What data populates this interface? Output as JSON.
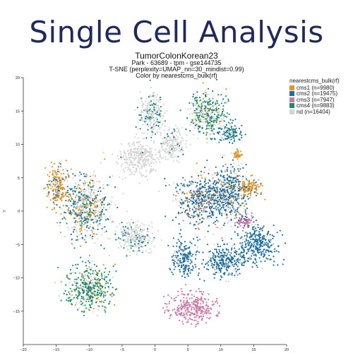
{
  "banner": {
    "title": "Single Cell Analysis"
  },
  "header": {
    "dataset": "TumorColonKorean23",
    "subtitle": "Park - 63689 - tpm - gse144735",
    "method": "T-SNE (perplexity=UMAP_nn=30_mindist=0.99)",
    "color_by": "Color by nearestcms_bulk(rf)"
  },
  "legend": {
    "title": "nearestcms_bulk(rf)",
    "items": [
      {
        "label": "cms1 (n=9980)",
        "color": "#e0962a"
      },
      {
        "label": "cms2 (n=19475)",
        "color": "#1f6e9c"
      },
      {
        "label": "cms3 (n=7947)",
        "color": "#c97aa6"
      },
      {
        "label": "cms4 (n=9883)",
        "color": "#1a8f68"
      },
      {
        "label": "nd (n=16404)",
        "color": "#d4d4d4"
      }
    ]
  },
  "chart_data": {
    "type": "scatter",
    "title": "TumorColonKorean23",
    "xlim": [
      -20,
      20
    ],
    "ylim": [
      -20,
      20
    ],
    "xticks": [
      -20,
      -15,
      -10,
      -5,
      0,
      5,
      10,
      15,
      20
    ],
    "yticks": [
      20,
      15,
      10,
      5,
      0,
      -5,
      -10,
      -15
    ],
    "ylabel": "Y",
    "grid": false,
    "legend_position": "top-right",
    "series": [
      {
        "name": "cms1 (n=9980)",
        "color": "#e0962a",
        "n": 9980
      },
      {
        "name": "cms2 (n=19475)",
        "color": "#1f6e9c",
        "n": 19475
      },
      {
        "name": "cms3 (n=7947)",
        "color": "#c97aa6",
        "n": 7947
      },
      {
        "name": "cms4 (n=9883)",
        "color": "#1a8f68",
        "n": 9883
      },
      {
        "name": "nd (n=16404)",
        "color": "#d4d4d4",
        "n": 16404
      }
    ],
    "clusters": [
      {
        "center": [
          -10.5,
          0.5
        ],
        "spread": [
          3.2,
          4.2
        ],
        "mix": {
          "nd": 0.45,
          "cms2": 0.25,
          "cms1": 0.18,
          "cms4": 0.12
        }
      },
      {
        "center": [
          -14.8,
          3.5
        ],
        "spread": [
          1.4,
          3.0
        ],
        "mix": {
          "cms1": 0.7,
          "cms2": 0.2,
          "nd": 0.1
        }
      },
      {
        "center": [
          -10.0,
          -11.5
        ],
        "spread": [
          3.2,
          3.0
        ],
        "mix": {
          "cms4": 0.55,
          "nd": 0.2,
          "cms1": 0.15,
          "cms2": 0.1
        }
      },
      {
        "center": [
          -3.0,
          -4.0
        ],
        "spread": [
          2.6,
          2.0
        ],
        "mix": {
          "nd": 0.8,
          "cms4": 0.1,
          "cms2": 0.1
        }
      },
      {
        "center": [
          -2.5,
          8.0
        ],
        "spread": [
          2.8,
          2.2
        ],
        "mix": {
          "nd": 0.95,
          "cms2": 0.05
        }
      },
      {
        "center": [
          2.5,
          10.0
        ],
        "spread": [
          1.8,
          2.0
        ],
        "mix": {
          "nd": 0.9,
          "cms2": 0.05,
          "cms4": 0.05
        }
      },
      {
        "center": [
          8.0,
          14.5
        ],
        "spread": [
          2.6,
          3.0
        ],
        "mix": {
          "cms4": 0.45,
          "nd": 0.3,
          "cms2": 0.15,
          "cms1": 0.1
        }
      },
      {
        "center": [
          -0.5,
          14.5
        ],
        "spread": [
          1.8,
          2.8
        ],
        "mix": {
          "nd": 0.7,
          "cms4": 0.15,
          "cms2": 0.15
        }
      },
      {
        "center": [
          11.5,
          11.8
        ],
        "spread": [
          1.6,
          1.4
        ],
        "mix": {
          "cms2": 0.55,
          "cms4": 0.25,
          "nd": 0.2
        }
      },
      {
        "center": [
          7.5,
          1.5
        ],
        "spread": [
          4.2,
          3.3
        ],
        "mix": {
          "cms2": 0.55,
          "nd": 0.2,
          "cms1": 0.15,
          "cms3": 0.1
        }
      },
      {
        "center": [
          11.5,
          3.0
        ],
        "spread": [
          2.6,
          3.5
        ],
        "mix": {
          "cms2": 0.6,
          "nd": 0.25,
          "cms1": 0.1,
          "cms4": 0.05
        }
      },
      {
        "center": [
          15.5,
          -5.0
        ],
        "spread": [
          2.6,
          2.6
        ],
        "mix": {
          "cms2": 0.95,
          "nd": 0.05
        }
      },
      {
        "center": [
          10.5,
          -7.5
        ],
        "spread": [
          2.8,
          2.0
        ],
        "mix": {
          "cms2": 0.9,
          "nd": 0.1
        }
      },
      {
        "center": [
          4.5,
          -7.0
        ],
        "spread": [
          1.6,
          2.4
        ],
        "mix": {
          "cms2": 0.85,
          "nd": 0.15
        }
      },
      {
        "center": [
          5.5,
          -14.5
        ],
        "spread": [
          3.2,
          2.1
        ],
        "mix": {
          "cms3": 0.95,
          "nd": 0.05
        }
      },
      {
        "center": [
          13.5,
          -1.5
        ],
        "spread": [
          1.1,
          1.0
        ],
        "mix": {
          "cms3": 0.85,
          "cms2": 0.15
        }
      },
      {
        "center": [
          14.5,
          3.5
        ],
        "spread": [
          1.6,
          1.0
        ],
        "mix": {
          "cms1": 0.85,
          "cms2": 0.15
        }
      },
      {
        "center": [
          12.5,
          8.5
        ],
        "spread": [
          0.7,
          0.5
        ],
        "mix": {
          "cms1": 0.9,
          "nd": 0.1
        }
      }
    ]
  }
}
